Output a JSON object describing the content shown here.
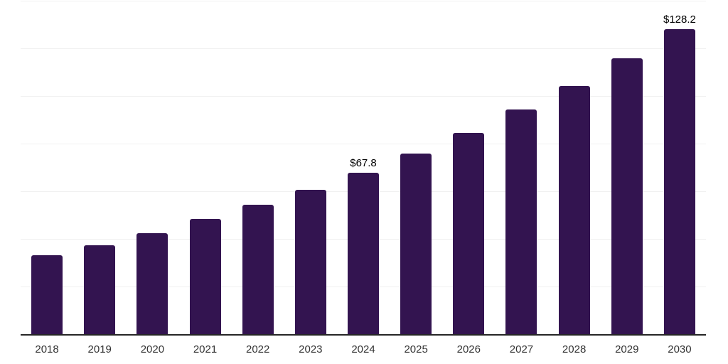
{
  "chart_data": {
    "type": "bar",
    "title": "",
    "xlabel": "",
    "ylabel": "",
    "categories": [
      "2018",
      "2019",
      "2020",
      "2021",
      "2022",
      "2023",
      "2024",
      "2025",
      "2026",
      "2027",
      "2028",
      "2029",
      "2030"
    ],
    "values": [
      33.2,
      37.2,
      42.3,
      48.3,
      54.3,
      60.7,
      67.8,
      75.8,
      84.4,
      94.2,
      104.3,
      115.7,
      128.2
    ],
    "annotations": [
      {
        "category": "2024",
        "text": "$67.8"
      },
      {
        "category": "2030",
        "text": "$128.2"
      }
    ],
    "ylim": [
      0,
      140
    ],
    "grid_step": 20,
    "grid": "horizontal-only",
    "legend": "none",
    "colors": {
      "bar": "#331450",
      "axis_line": "#262626",
      "gridline": "#f0f0f0",
      "tick_label": "#333333",
      "annotation": "#000000",
      "background": "#ffffff"
    }
  }
}
